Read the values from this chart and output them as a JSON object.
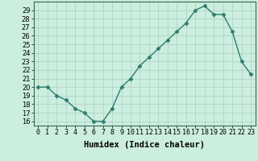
{
  "xlabel": "Humidex (Indice chaleur)",
  "x": [
    0,
    1,
    2,
    3,
    4,
    5,
    6,
    7,
    8,
    9,
    10,
    11,
    12,
    13,
    14,
    15,
    16,
    17,
    18,
    19,
    20,
    21,
    22,
    23
  ],
  "y": [
    20,
    20,
    19,
    18.5,
    17.5,
    17,
    16,
    16,
    17.5,
    20,
    21,
    22.5,
    23.5,
    24.5,
    25.5,
    26.5,
    27.5,
    29,
    29.5,
    28.5,
    28.5,
    26.5,
    23,
    21.5
  ],
  "yticks": [
    16,
    17,
    18,
    19,
    20,
    21,
    22,
    23,
    24,
    25,
    26,
    27,
    28,
    29
  ],
  "line_color": "#2e7d6e",
  "marker": "D",
  "marker_size": 2.5,
  "bg_color": "#cceedd",
  "grid_color": "#aacccc",
  "fig_bg": "#cceedd",
  "tick_fontsize": 6.0,
  "xlabel_fontsize": 7.5
}
